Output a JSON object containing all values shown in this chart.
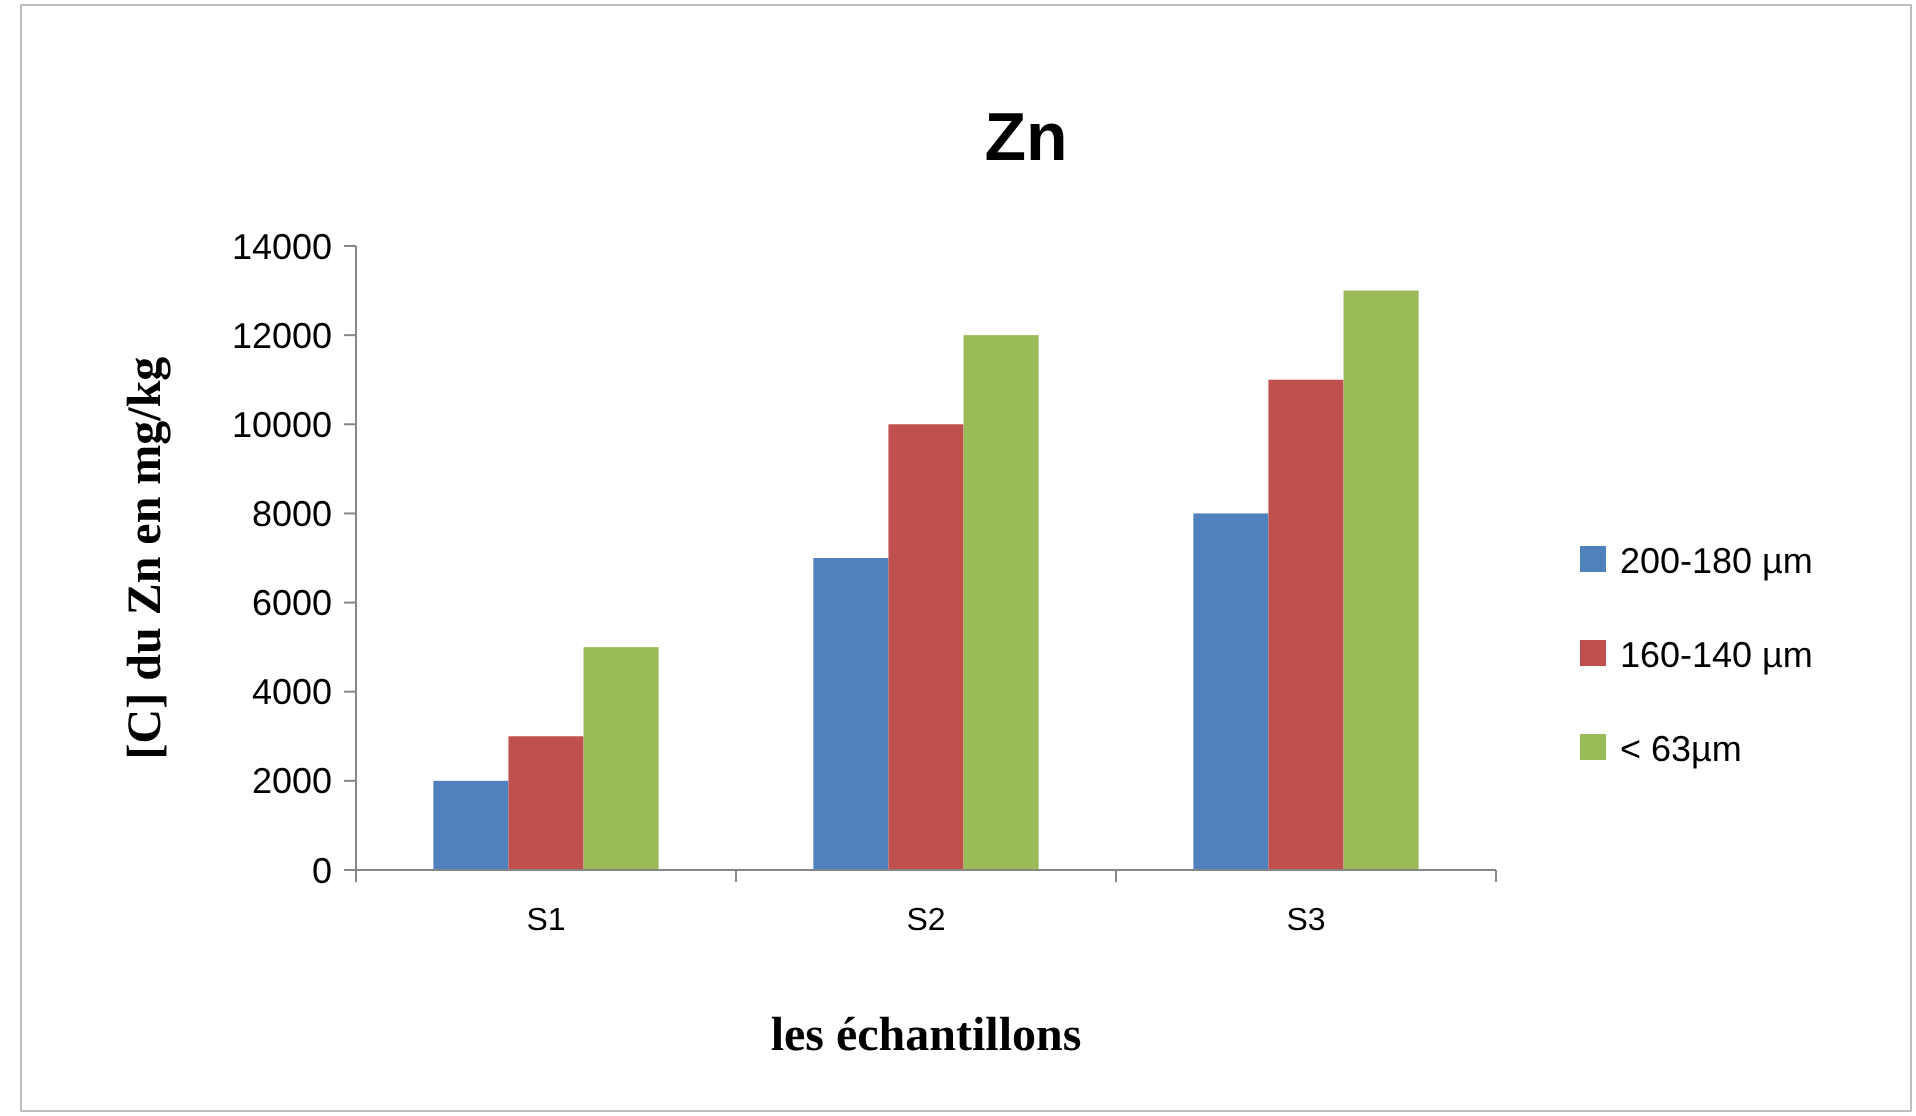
{
  "chart_data": {
    "type": "bar",
    "title": "Zn",
    "xlabel": "les échantillons",
    "ylabel": "[C] du Zn en mg/kg",
    "categories": [
      "S1",
      "S2",
      "S3"
    ],
    "series": [
      {
        "name": "200-180 µm",
        "color": "#4f81bd",
        "values": [
          2000,
          7000,
          8000
        ]
      },
      {
        "name": "160-140 µm",
        "color": "#c0504d",
        "values": [
          3000,
          10000,
          11000
        ]
      },
      {
        "name": "< 63µm",
        "color": "#9bbb59",
        "values": [
          5000,
          12000,
          13000
        ]
      }
    ],
    "ylim": [
      0,
      14000
    ],
    "yticks": [
      0,
      2000,
      4000,
      6000,
      8000,
      10000,
      12000,
      14000
    ],
    "grid": false,
    "legend": "right"
  }
}
